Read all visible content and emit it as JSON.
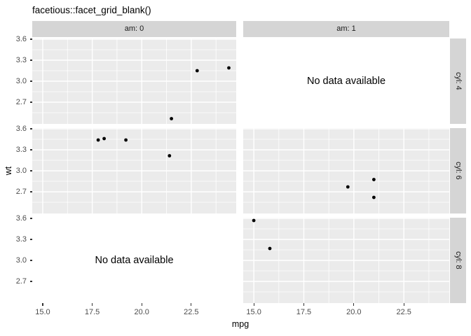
{
  "chart_data": {
    "type": "scatter",
    "title": "facetious::facet_grid_blank()",
    "xlabel": "mpg",
    "ylabel": "wt",
    "legend": "none",
    "grid": "on",
    "facet_col_labels": [
      "am: 0",
      "am: 1"
    ],
    "facet_row_labels": [
      "cyl: 4",
      "cyl: 6",
      "cyl: 8"
    ],
    "empty_panel_text": "No data available",
    "x_domain": [
      14.47,
      24.77
    ],
    "y_domain": [
      2.39,
      3.61
    ],
    "x_ticks": [
      15.0,
      17.5,
      20.0,
      22.5
    ],
    "x_tick_labels": [
      "15.0",
      "17.5",
      "20.0",
      "22.5"
    ],
    "y_ticks": [
      3.6,
      3.3,
      3.0,
      2.7
    ],
    "y_tick_labels": [
      "3.6",
      "3.3",
      "3.0",
      "2.7"
    ],
    "x_minor_ticks": [
      16.25,
      18.75,
      21.25,
      23.75
    ],
    "y_minor_ticks": [
      3.45,
      3.15,
      2.85,
      2.55
    ],
    "panels": [
      {
        "col": 0,
        "row": 0,
        "empty": false,
        "points": [
          [
            21.5,
            2.465
          ],
          [
            22.8,
            3.15
          ],
          [
            24.4,
            3.19
          ]
        ]
      },
      {
        "col": 1,
        "row": 0,
        "empty": true,
        "points": []
      },
      {
        "col": 0,
        "row": 1,
        "empty": false,
        "points": [
          [
            17.8,
            3.44
          ],
          [
            18.1,
            3.46
          ],
          [
            19.2,
            3.44
          ],
          [
            21.4,
            3.215
          ]
        ]
      },
      {
        "col": 1,
        "row": 1,
        "empty": false,
        "points": [
          [
            19.7,
            2.77
          ],
          [
            21.0,
            2.875
          ],
          [
            21.0,
            2.62
          ]
        ]
      },
      {
        "col": 0,
        "row": 2,
        "empty": true,
        "points": []
      },
      {
        "col": 1,
        "row": 2,
        "empty": false,
        "points": [
          [
            15.0,
            3.57
          ],
          [
            15.8,
            3.17
          ]
        ]
      }
    ],
    "colors": {
      "panel_bg": "#EBEBEB",
      "strip_bg": "#D5D5D5",
      "grid_line": "#FFFFFF",
      "point": "#000000",
      "axis_text": "#4D4D4D",
      "tick_mark": "#333333",
      "strip_text": "#1A1A1A",
      "title_text": "#000000"
    }
  }
}
